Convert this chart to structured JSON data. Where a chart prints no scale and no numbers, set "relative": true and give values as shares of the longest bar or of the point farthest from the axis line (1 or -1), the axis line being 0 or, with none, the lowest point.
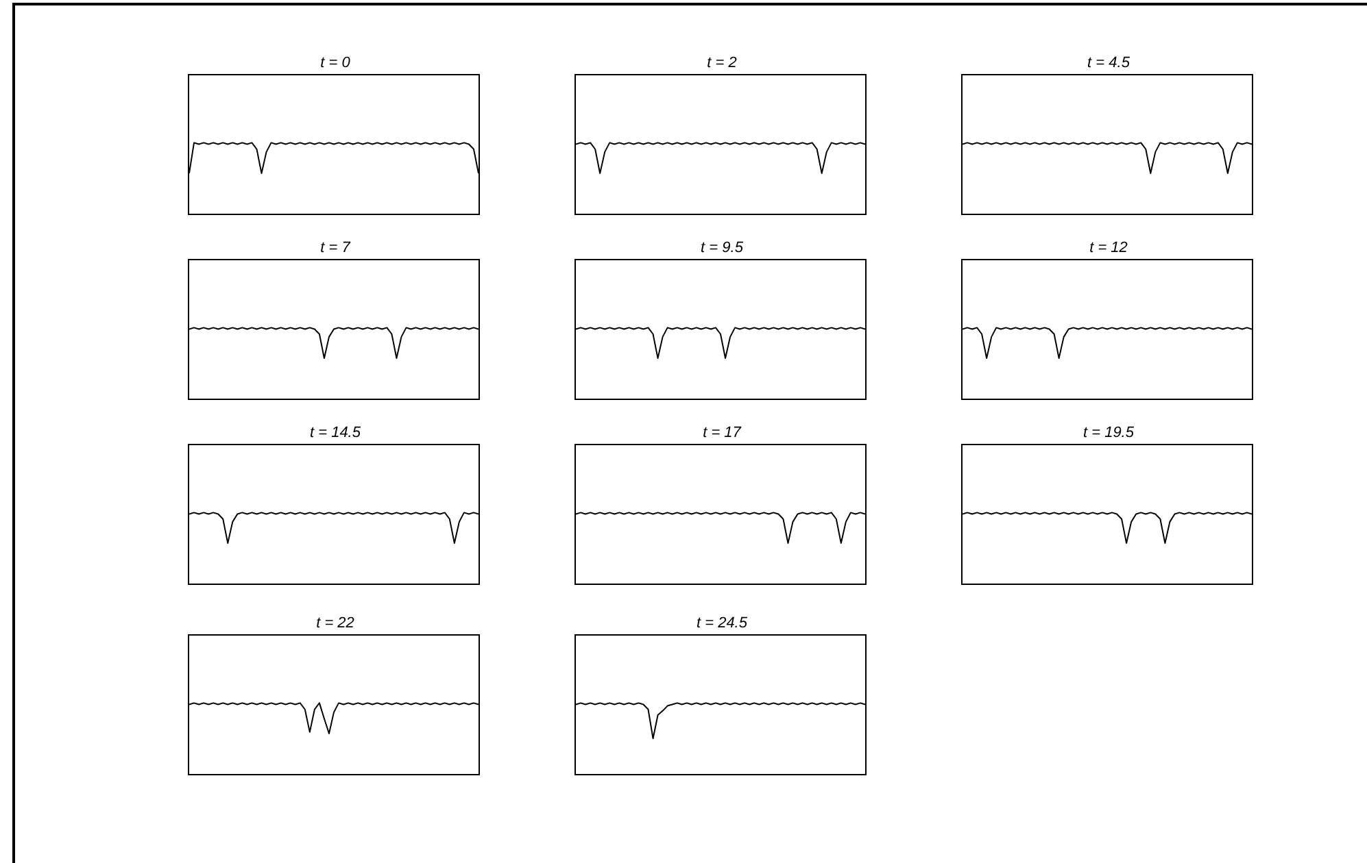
{
  "chart_data": [
    {
      "type": "line",
      "title": "t = 0",
      "relative": true,
      "tick_labels": false,
      "categories": [
        null,
        null,
        null,
        null,
        null,
        null,
        null,
        null,
        null,
        null,
        null,
        null,
        null,
        null,
        null,
        null,
        null,
        null,
        null,
        null,
        null,
        null,
        null,
        null,
        null,
        null,
        null,
        null,
        null,
        null,
        null,
        null,
        null,
        null,
        null,
        null,
        null,
        null,
        null,
        null,
        null,
        null,
        null,
        null,
        null,
        null,
        null,
        null,
        null,
        null,
        null,
        null,
        null,
        null,
        null,
        null,
        null,
        null,
        null,
        null,
        null
      ],
      "series": [
        {
          "color": "#000000",
          "values": [
            0.57,
            1,
            0.98,
            1,
            0.98,
            1,
            0.98,
            1,
            0.98,
            1,
            0.98,
            1,
            0.98,
            1,
            0.91,
            0.57,
            0.87,
            1,
            0.98,
            1,
            0.98,
            1,
            0.98,
            1,
            0.98,
            1,
            0.98,
            1,
            0.98,
            1,
            0.98,
            1,
            0.98,
            1,
            0.98,
            1,
            0.98,
            1,
            0.98,
            1,
            0.98,
            1,
            0.98,
            1,
            0.98,
            1,
            0.98,
            1,
            0.98,
            1,
            0.98,
            1,
            0.98,
            1,
            0.98,
            1,
            0.98,
            1,
            0.98,
            0.91,
            0.57
          ]
        }
      ]
    },
    {
      "type": "line",
      "title": "t = 2",
      "relative": true,
      "tick_labels": false,
      "categories": [
        null,
        null,
        null,
        null,
        null,
        null,
        null,
        null,
        null,
        null,
        null,
        null,
        null,
        null,
        null,
        null,
        null,
        null,
        null,
        null,
        null,
        null,
        null,
        null,
        null,
        null,
        null,
        null,
        null,
        null,
        null,
        null,
        null,
        null,
        null,
        null,
        null,
        null,
        null,
        null,
        null,
        null,
        null,
        null,
        null,
        null,
        null,
        null,
        null,
        null,
        null,
        null,
        null,
        null,
        null,
        null,
        null,
        null,
        null,
        null,
        null
      ],
      "series": [
        {
          "color": "#000000",
          "values": [
            0.98,
            1,
            0.98,
            1,
            0.91,
            0.57,
            0.87,
            1,
            0.98,
            1,
            0.98,
            1,
            0.98,
            1,
            0.98,
            1,
            0.98,
            1,
            0.98,
            1,
            0.98,
            1,
            0.98,
            1,
            0.98,
            1,
            0.98,
            1,
            0.98,
            1,
            0.98,
            1,
            0.98,
            1,
            0.98,
            1,
            0.98,
            1,
            0.98,
            1,
            0.98,
            1,
            0.98,
            1,
            0.98,
            1,
            0.98,
            1,
            0.98,
            1,
            0.91,
            0.57,
            0.87,
            1,
            0.98,
            1,
            0.98,
            1,
            0.98,
            1,
            0.98
          ]
        }
      ]
    },
    {
      "type": "line",
      "title": "t = 4.5",
      "relative": true,
      "tick_labels": false,
      "categories": [
        null,
        null,
        null,
        null,
        null,
        null,
        null,
        null,
        null,
        null,
        null,
        null,
        null,
        null,
        null,
        null,
        null,
        null,
        null,
        null,
        null,
        null,
        null,
        null,
        null,
        null,
        null,
        null,
        null,
        null,
        null,
        null,
        null,
        null,
        null,
        null,
        null,
        null,
        null,
        null,
        null,
        null,
        null,
        null,
        null,
        null,
        null,
        null,
        null,
        null,
        null,
        null,
        null,
        null,
        null,
        null,
        null,
        null,
        null,
        null,
        null
      ],
      "series": [
        {
          "color": "#000000",
          "values": [
            0.98,
            1,
            0.98,
            1,
            0.98,
            1,
            0.98,
            1,
            0.98,
            1,
            0.98,
            1,
            0.98,
            1,
            0.98,
            1,
            0.98,
            1,
            0.98,
            1,
            0.98,
            1,
            0.98,
            1,
            0.98,
            1,
            0.98,
            1,
            0.98,
            1,
            0.98,
            1,
            0.98,
            1,
            0.98,
            1,
            0.98,
            1,
            0.91,
            0.57,
            0.87,
            1,
            0.98,
            1,
            0.98,
            1,
            0.98,
            1,
            0.98,
            1,
            0.98,
            1,
            0.98,
            1,
            0.91,
            0.57,
            0.87,
            1,
            0.98,
            1,
            0.98
          ]
        }
      ]
    },
    {
      "type": "line",
      "title": "t = 7",
      "relative": true,
      "tick_labels": false,
      "categories": [
        null,
        null,
        null,
        null,
        null,
        null,
        null,
        null,
        null,
        null,
        null,
        null,
        null,
        null,
        null,
        null,
        null,
        null,
        null,
        null,
        null,
        null,
        null,
        null,
        null,
        null,
        null,
        null,
        null,
        null,
        null,
        null,
        null,
        null,
        null,
        null,
        null,
        null,
        null,
        null,
        null,
        null,
        null,
        null,
        null,
        null,
        null,
        null,
        null,
        null,
        null,
        null,
        null,
        null,
        null,
        null,
        null,
        null,
        null,
        null,
        null
      ],
      "series": [
        {
          "color": "#000000",
          "values": [
            0.98,
            1,
            0.98,
            1,
            0.98,
            1,
            0.98,
            1,
            0.98,
            1,
            0.98,
            1,
            0.98,
            1,
            0.98,
            1,
            0.98,
            1,
            0.98,
            1,
            0.98,
            1,
            0.98,
            1,
            0.98,
            1,
            0.98,
            0.91,
            0.57,
            0.87,
            0.98,
            1,
            0.98,
            1,
            0.98,
            1,
            0.98,
            1,
            0.98,
            1,
            0.98,
            1,
            0.91,
            0.57,
            0.87,
            1,
            0.98,
            1,
            0.98,
            1,
            0.98,
            1,
            0.98,
            1,
            0.98,
            1,
            0.98,
            1,
            0.98,
            1,
            0.98
          ]
        }
      ]
    },
    {
      "type": "line",
      "title": "t = 9.5",
      "relative": true,
      "tick_labels": false,
      "categories": [
        null,
        null,
        null,
        null,
        null,
        null,
        null,
        null,
        null,
        null,
        null,
        null,
        null,
        null,
        null,
        null,
        null,
        null,
        null,
        null,
        null,
        null,
        null,
        null,
        null,
        null,
        null,
        null,
        null,
        null,
        null,
        null,
        null,
        null,
        null,
        null,
        null,
        null,
        null,
        null,
        null,
        null,
        null,
        null,
        null,
        null,
        null,
        null,
        null,
        null,
        null,
        null,
        null,
        null,
        null,
        null,
        null,
        null,
        null,
        null,
        null
      ],
      "series": [
        {
          "color": "#000000",
          "values": [
            0.98,
            1,
            0.98,
            1,
            0.98,
            1,
            0.98,
            1,
            0.98,
            1,
            0.98,
            1,
            0.98,
            1,
            0.98,
            1,
            0.91,
            0.57,
            0.87,
            1,
            0.98,
            1,
            0.98,
            1,
            0.98,
            1,
            0.98,
            1,
            0.98,
            1,
            0.91,
            0.57,
            0.87,
            1,
            0.98,
            1,
            0.98,
            1,
            0.98,
            1,
            0.98,
            1,
            0.98,
            1,
            0.98,
            1,
            0.98,
            1,
            0.98,
            1,
            0.98,
            1,
            0.98,
            1,
            0.98,
            1,
            0.98,
            1,
            0.98,
            1,
            0.98
          ]
        }
      ]
    },
    {
      "type": "line",
      "title": "t = 12",
      "relative": true,
      "tick_labels": false,
      "categories": [
        null,
        null,
        null,
        null,
        null,
        null,
        null,
        null,
        null,
        null,
        null,
        null,
        null,
        null,
        null,
        null,
        null,
        null,
        null,
        null,
        null,
        null,
        null,
        null,
        null,
        null,
        null,
        null,
        null,
        null,
        null,
        null,
        null,
        null,
        null,
        null,
        null,
        null,
        null,
        null,
        null,
        null,
        null,
        null,
        null,
        null,
        null,
        null,
        null,
        null,
        null,
        null,
        null,
        null,
        null,
        null,
        null,
        null,
        null,
        null,
        null
      ],
      "series": [
        {
          "color": "#000000",
          "values": [
            0.98,
            1,
            0.98,
            1,
            0.91,
            0.57,
            0.87,
            1,
            0.98,
            1,
            0.98,
            1,
            0.98,
            1,
            0.98,
            1,
            0.98,
            1,
            0.98,
            0.91,
            0.57,
            0.87,
            0.98,
            1,
            0.98,
            1,
            0.98,
            1,
            0.98,
            1,
            0.98,
            1,
            0.98,
            1,
            0.98,
            1,
            0.98,
            1,
            0.98,
            1,
            0.98,
            1,
            0.98,
            1,
            0.98,
            1,
            0.98,
            1,
            0.98,
            1,
            0.98,
            1,
            0.98,
            1,
            0.98,
            1,
            0.98,
            1,
            0.98,
            1,
            0.98
          ]
        }
      ]
    },
    {
      "type": "line",
      "title": "t = 14.5",
      "relative": true,
      "tick_labels": false,
      "categories": [
        null,
        null,
        null,
        null,
        null,
        null,
        null,
        null,
        null,
        null,
        null,
        null,
        null,
        null,
        null,
        null,
        null,
        null,
        null,
        null,
        null,
        null,
        null,
        null,
        null,
        null,
        null,
        null,
        null,
        null,
        null,
        null,
        null,
        null,
        null,
        null,
        null,
        null,
        null,
        null,
        null,
        null,
        null,
        null,
        null,
        null,
        null,
        null,
        null,
        null,
        null,
        null,
        null,
        null,
        null,
        null,
        null,
        null,
        null,
        null,
        null
      ],
      "series": [
        {
          "color": "#000000",
          "values": [
            0.98,
            1,
            0.98,
            1,
            0.98,
            1,
            0.98,
            0.91,
            0.57,
            0.87,
            0.98,
            1,
            0.98,
            1,
            0.98,
            1,
            0.98,
            1,
            0.98,
            1,
            0.98,
            1,
            0.98,
            1,
            0.98,
            1,
            0.98,
            1,
            0.98,
            1,
            0.98,
            1,
            0.98,
            1,
            0.98,
            1,
            0.98,
            1,
            0.98,
            1,
            0.98,
            1,
            0.98,
            1,
            0.98,
            1,
            0.98,
            1,
            0.98,
            1,
            0.98,
            1,
            0.98,
            1,
            0.91,
            0.57,
            0.87,
            1,
            0.98,
            1,
            0.98
          ]
        }
      ]
    },
    {
      "type": "line",
      "title": "t = 17",
      "relative": true,
      "tick_labels": false,
      "categories": [
        null,
        null,
        null,
        null,
        null,
        null,
        null,
        null,
        null,
        null,
        null,
        null,
        null,
        null,
        null,
        null,
        null,
        null,
        null,
        null,
        null,
        null,
        null,
        null,
        null,
        null,
        null,
        null,
        null,
        null,
        null,
        null,
        null,
        null,
        null,
        null,
        null,
        null,
        null,
        null,
        null,
        null,
        null,
        null,
        null,
        null,
        null,
        null,
        null,
        null,
        null,
        null,
        null,
        null,
        null,
        null,
        null,
        null,
        null,
        null,
        null
      ],
      "series": [
        {
          "color": "#000000",
          "values": [
            0.98,
            1,
            0.98,
            1,
            0.98,
            1,
            0.98,
            1,
            0.98,
            1,
            0.98,
            1,
            0.98,
            1,
            0.98,
            1,
            0.98,
            1,
            0.98,
            1,
            0.98,
            1,
            0.98,
            1,
            0.98,
            1,
            0.98,
            1,
            0.98,
            1,
            0.98,
            1,
            0.98,
            1,
            0.98,
            1,
            0.98,
            1,
            0.98,
            1,
            0.98,
            1,
            0.98,
            0.91,
            0.57,
            0.87,
            0.98,
            1,
            0.98,
            1,
            0.98,
            1,
            0.98,
            1,
            0.91,
            0.57,
            0.87,
            1,
            0.98,
            1,
            0.98
          ]
        }
      ]
    },
    {
      "type": "line",
      "title": "t = 19.5",
      "relative": true,
      "tick_labels": false,
      "categories": [
        null,
        null,
        null,
        null,
        null,
        null,
        null,
        null,
        null,
        null,
        null,
        null,
        null,
        null,
        null,
        null,
        null,
        null,
        null,
        null,
        null,
        null,
        null,
        null,
        null,
        null,
        null,
        null,
        null,
        null,
        null,
        null,
        null,
        null,
        null,
        null,
        null,
        null,
        null,
        null,
        null,
        null,
        null,
        null,
        null,
        null,
        null,
        null,
        null,
        null,
        null,
        null,
        null,
        null,
        null,
        null,
        null,
        null,
        null,
        null,
        null
      ],
      "series": [
        {
          "color": "#000000",
          "values": [
            0.98,
            1,
            0.98,
            1,
            0.98,
            1,
            0.98,
            1,
            0.98,
            1,
            0.98,
            1,
            0.98,
            1,
            0.98,
            1,
            0.98,
            1,
            0.98,
            1,
            0.98,
            1,
            0.98,
            1,
            0.98,
            1,
            0.98,
            1,
            0.98,
            1,
            0.98,
            1,
            0.98,
            0.91,
            0.57,
            0.87,
            0.98,
            1,
            0.98,
            1,
            0.98,
            0.91,
            0.57,
            0.87,
            0.98,
            1,
            0.98,
            1,
            0.98,
            1,
            0.98,
            1,
            0.98,
            1,
            0.98,
            1,
            0.98,
            1,
            0.98,
            1,
            0.98
          ]
        }
      ]
    },
    {
      "type": "line",
      "title": "t = 22",
      "relative": true,
      "tick_labels": false,
      "categories": [
        null,
        null,
        null,
        null,
        null,
        null,
        null,
        null,
        null,
        null,
        null,
        null,
        null,
        null,
        null,
        null,
        null,
        null,
        null,
        null,
        null,
        null,
        null,
        null,
        null,
        null,
        null,
        null,
        null,
        null,
        null,
        null,
        null,
        null,
        null,
        null,
        null,
        null,
        null,
        null,
        null,
        null,
        null,
        null,
        null,
        null,
        null,
        null,
        null,
        null,
        null,
        null,
        null,
        null,
        null,
        null,
        null,
        null,
        null,
        null,
        null
      ],
      "series": [
        {
          "color": "#000000",
          "values": [
            0.98,
            1,
            0.98,
            1,
            0.98,
            1,
            0.98,
            1,
            0.98,
            1,
            0.98,
            1,
            0.98,
            1,
            0.98,
            1,
            0.98,
            1,
            0.98,
            1,
            0.98,
            1,
            0.98,
            1,
            0.91,
            0.59,
            0.91,
            1,
            0.78,
            0.57,
            0.87,
            1,
            0.98,
            1,
            0.98,
            1,
            0.98,
            1,
            0.98,
            1,
            0.98,
            1,
            0.98,
            1,
            0.98,
            1,
            0.98,
            1,
            0.98,
            1,
            0.98,
            1,
            0.98,
            1,
            0.98,
            1,
            0.98,
            1,
            0.98,
            1,
            0.98
          ]
        }
      ]
    },
    {
      "type": "line",
      "title": "t = 24.5",
      "relative": true,
      "tick_labels": false,
      "categories": [
        null,
        null,
        null,
        null,
        null,
        null,
        null,
        null,
        null,
        null,
        null,
        null,
        null,
        null,
        null,
        null,
        null,
        null,
        null,
        null,
        null,
        null,
        null,
        null,
        null,
        null,
        null,
        null,
        null,
        null,
        null,
        null,
        null,
        null,
        null,
        null,
        null,
        null,
        null,
        null,
        null,
        null,
        null,
        null,
        null,
        null,
        null,
        null,
        null,
        null,
        null,
        null,
        null,
        null,
        null,
        null,
        null,
        null,
        null,
        null,
        null
      ],
      "series": [
        {
          "color": "#000000",
          "values": [
            0.98,
            1,
            0.98,
            1,
            0.98,
            1,
            0.98,
            1,
            0.98,
            1,
            0.98,
            1,
            0.98,
            1,
            0.98,
            0.91,
            0.5,
            0.83,
            0.89,
            0.96,
            0.98,
            1,
            0.98,
            1,
            0.98,
            1,
            0.98,
            1,
            0.98,
            1,
            0.98,
            1,
            0.98,
            1,
            0.98,
            1,
            0.98,
            1,
            0.98,
            1,
            0.98,
            1,
            0.98,
            1,
            0.98,
            1,
            0.98,
            1,
            0.98,
            1,
            0.98,
            1,
            0.98,
            1,
            0.98,
            1,
            0.98,
            1,
            0.98,
            1,
            0.98
          ]
        }
      ]
    }
  ]
}
